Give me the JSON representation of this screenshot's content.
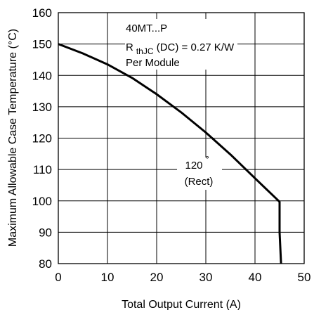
{
  "chart_data": {
    "type": "line",
    "xlabel": "Total Output Current (A)",
    "ylabel": "Maximum Allowable Case Temperature (°C)",
    "xlim": [
      0,
      50
    ],
    "ylim": [
      80,
      160
    ],
    "xticks": [
      0,
      10,
      20,
      30,
      40,
      50
    ],
    "yticks": [
      80,
      90,
      100,
      110,
      120,
      130,
      140,
      150,
      160
    ],
    "grid": true,
    "annotation": {
      "device": "40MT...P",
      "r_main": "R",
      "r_sub": "thJC",
      "r_rest": " (DC) = 0.27 K/W",
      "module": "Per Module"
    },
    "series": [
      {
        "label_line1": "120",
        "label_deg": "˚",
        "label_line2": "(Rect)",
        "x": [
          0,
          5,
          10,
          15,
          20,
          25,
          30,
          35,
          40,
          45,
          45,
          45.3
        ],
        "y": [
          150,
          147,
          143.5,
          139.2,
          134,
          128.2,
          121.8,
          114.8,
          107.2,
          99.7,
          90,
          80
        ]
      }
    ]
  }
}
